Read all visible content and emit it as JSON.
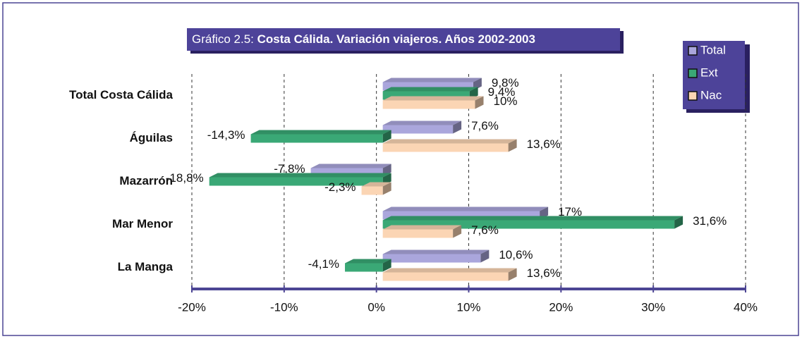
{
  "chart_data": {
    "type": "bar",
    "orientation": "horizontal",
    "title_label": "Gráfico 2.5:",
    "title": "Costa Cálida. Variación viajeros. Años 2002-2003",
    "categories": [
      "Total Costa Cálida",
      "Águilas",
      "Mazarrón",
      "Mar Menor",
      "La Manga"
    ],
    "series": [
      {
        "name": "Total",
        "color": "#aaa6dc",
        "values": [
          9.8,
          7.6,
          -7.8,
          17,
          10.6
        ],
        "value_labels": [
          "9,8%",
          "7,6%",
          "-7,8%",
          "17%",
          "10,6%"
        ]
      },
      {
        "name": "Ext",
        "color": "#3aa876",
        "values": [
          9.4,
          -14.3,
          -18.8,
          31.6,
          -4.1
        ],
        "value_labels": [
          "9,4%",
          "-14,3%",
          "-18,8%",
          "31,6%",
          "-4,1%"
        ]
      },
      {
        "name": "Nac",
        "color": "#fbd5b4",
        "values": [
          10,
          13.6,
          -2.3,
          7.6,
          13.6
        ],
        "value_labels": [
          "10%",
          "13,6%",
          "-2,3%",
          "7,6%",
          "13,6%"
        ]
      }
    ],
    "xlim": [
      -20,
      40
    ],
    "xticks": [
      {
        "value": -20,
        "label": "-20%"
      },
      {
        "value": -10,
        "label": "-10%"
      },
      {
        "value": 0,
        "label": "0%"
      },
      {
        "value": 10,
        "label": "10%"
      },
      {
        "value": 20,
        "label": "20%"
      },
      {
        "value": 30,
        "label": "30%"
      },
      {
        "value": 40,
        "label": "40%"
      }
    ],
    "grid": true,
    "legend": "upper right"
  }
}
